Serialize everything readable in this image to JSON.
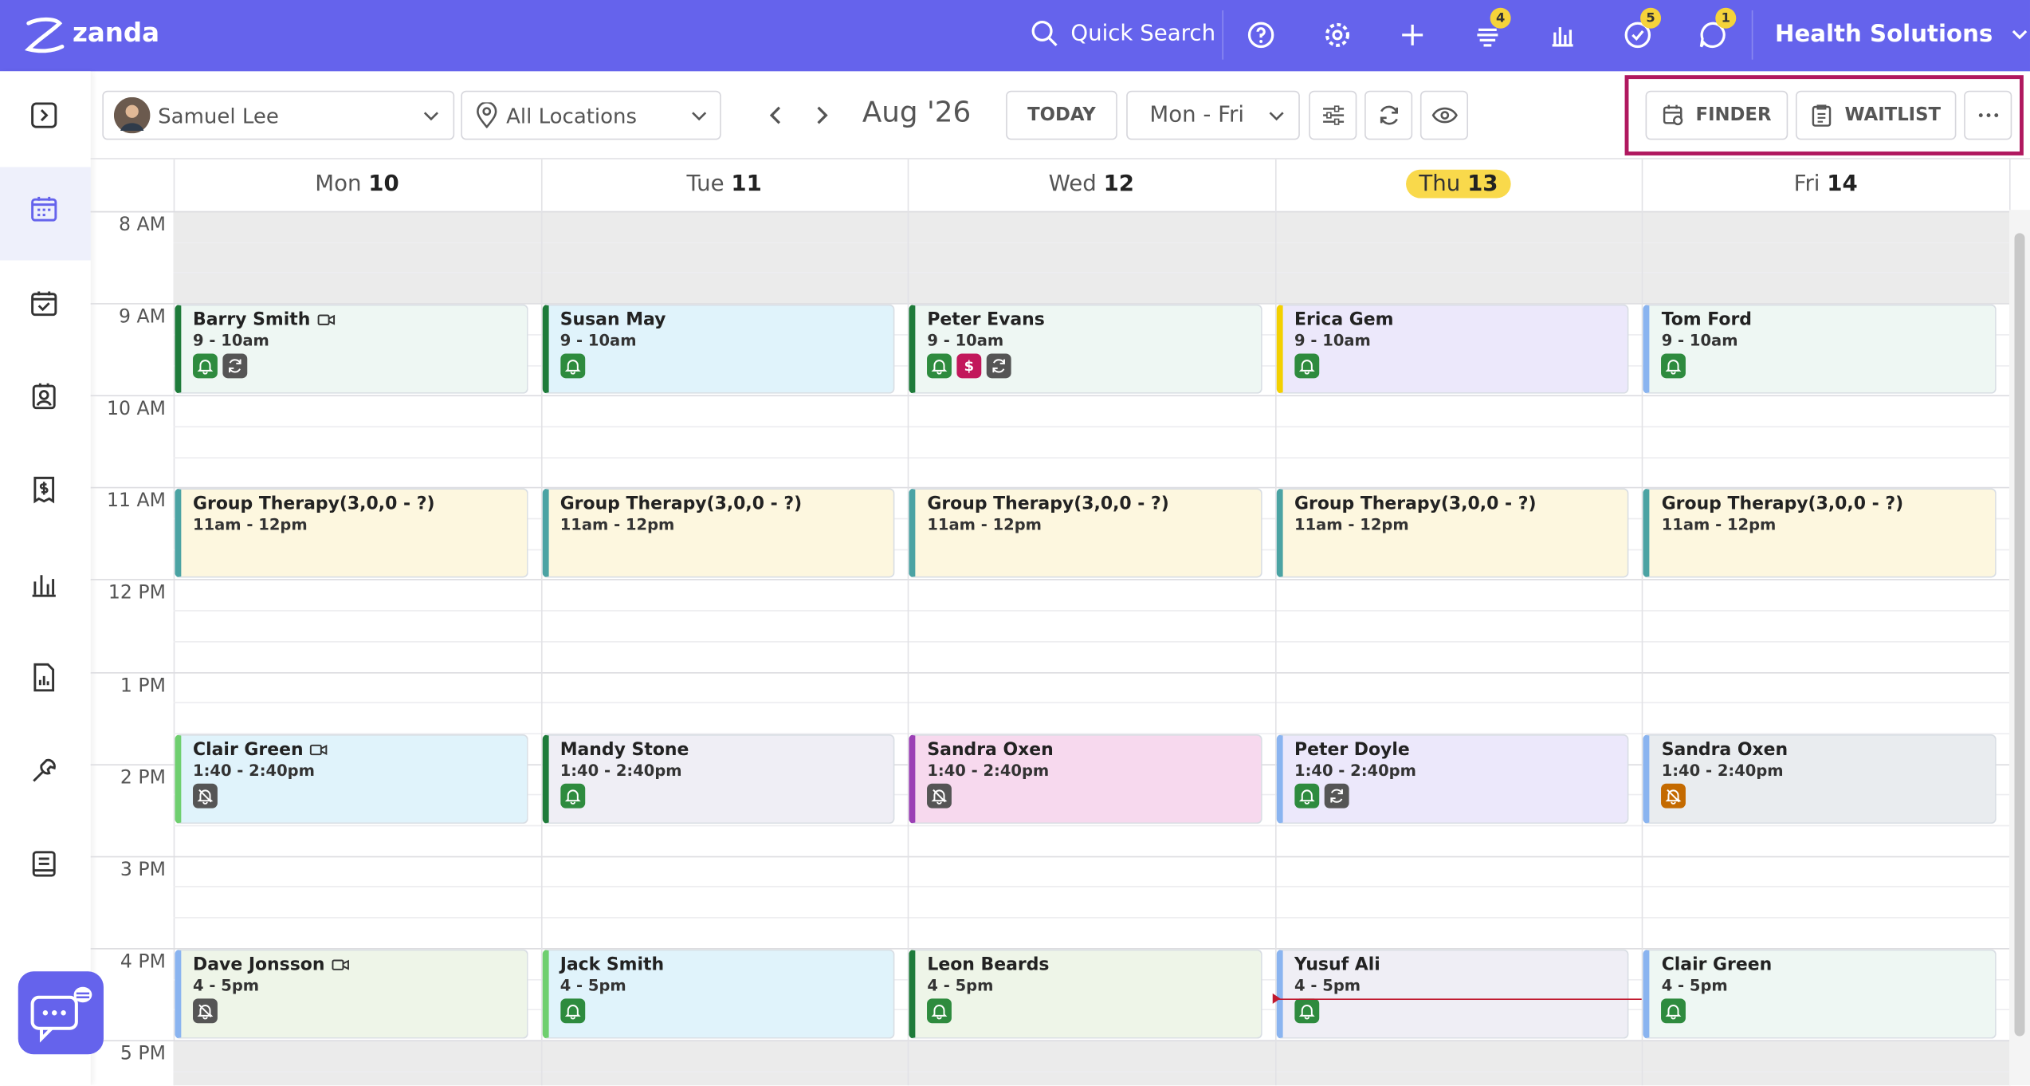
{
  "header": {
    "brand": "zanda",
    "search": "Quick Search",
    "badges": [
      4,
      5,
      1
    ],
    "account": "Health Solutions"
  },
  "toolbar": {
    "practitioner": "Samuel Lee",
    "location": "All Locations",
    "period": "Aug '26",
    "today": "TODAY",
    "range": "Mon - Fri",
    "finder": "FINDER",
    "waitlist": "WAITLIST"
  },
  "calendar": {
    "days": [
      {
        "weekday": "Mon",
        "date": "10"
      },
      {
        "weekday": "Tue",
        "date": "11"
      },
      {
        "weekday": "Wed",
        "date": "12"
      },
      {
        "weekday": "Thu",
        "date": "13"
      },
      {
        "weekday": "Fri",
        "date": "14"
      }
    ],
    "hours": [
      "8 AM",
      "9 AM",
      "10 AM",
      "11 AM",
      "12 PM",
      "1 PM",
      "2 PM",
      "3 PM",
      "4 PM",
      "5 PM"
    ],
    "rows": [
      [
        {
          "name": "Barry Smith",
          "time": "9 - 10am"
        },
        {
          "name": "Susan May",
          "time": "9 - 10am"
        },
        {
          "name": "Peter Evans",
          "time": "9 - 10am"
        },
        {
          "name": "Erica Gem",
          "time": "9 - 10am"
        },
        {
          "name": "Tom Ford",
          "time": "9 - 10am"
        }
      ],
      [
        {
          "name": "Group Therapy(3,0,0 - ?)",
          "time": "11am - 12pm"
        },
        {
          "name": "Group Therapy(3,0,0 - ?)",
          "time": "11am - 12pm"
        },
        {
          "name": "Group Therapy(3,0,0 - ?)",
          "time": "11am - 12pm"
        },
        {
          "name": "Group Therapy(3,0,0 - ?)",
          "time": "11am - 12pm"
        },
        {
          "name": "Group Therapy(3,0,0 - ?)",
          "time": "11am - 12pm"
        }
      ],
      [
        {
          "name": "Clair Green",
          "time": "1:40 - 2:40pm"
        },
        {
          "name": "Mandy Stone",
          "time": "1:40 - 2:40pm"
        },
        {
          "name": "Sandra Oxen",
          "time": "1:40 - 2:40pm"
        },
        {
          "name": "Peter Doyle",
          "time": "1:40 - 2:40pm"
        },
        {
          "name": "Sandra Oxen",
          "time": "1:40 - 2:40pm"
        }
      ],
      [
        {
          "name": "Dave Jonsson",
          "time": "4 - 5pm"
        },
        {
          "name": "Jack Smith",
          "time": "4 - 5pm"
        },
        {
          "name": "Leon Beards",
          "time": "4 - 5pm"
        },
        {
          "name": "Yusuf Ali",
          "time": "4 - 5pm"
        },
        {
          "name": "Clair Green",
          "time": "4 - 5pm"
        }
      ]
    ]
  }
}
